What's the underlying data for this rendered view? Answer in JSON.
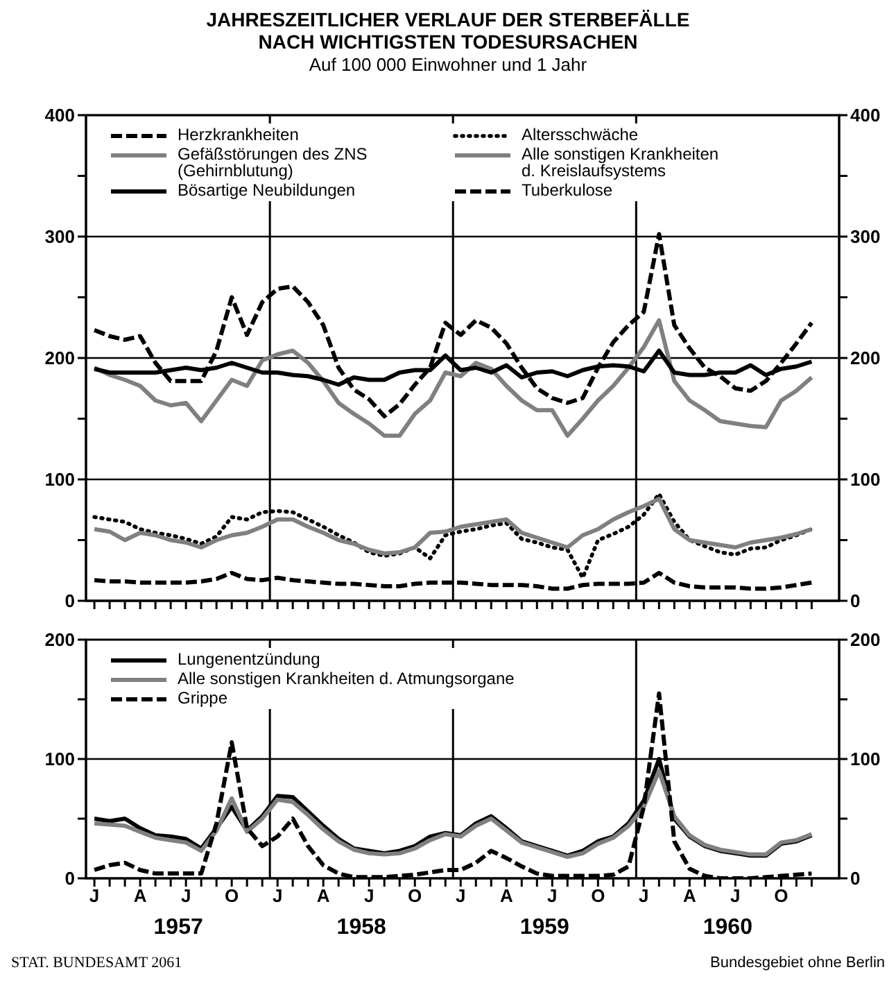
{
  "chart_data": [
    {
      "type": "line",
      "title": "JAHRESZEITLICHER VERLAUF DER STERBEFÄLLE NACH WICHTIGSTEN TODESURSACHEN",
      "subtitle": "Auf 100 000 Einwohner und 1 Jahr",
      "categories": [
        null,
        null,
        null,
        null,
        null,
        null,
        null,
        null,
        null,
        null,
        null,
        null,
        null,
        null,
        null,
        null,
        null,
        null,
        null,
        null,
        null,
        null,
        null,
        null,
        null,
        null,
        null,
        null,
        null,
        null,
        null,
        null,
        null,
        null,
        null,
        null,
        null,
        null,
        null,
        null,
        null,
        null,
        null,
        null,
        null,
        null,
        null,
        null
      ],
      "ylim": [
        0,
        400
      ],
      "yticks": [
        0,
        {
          "value": 50,
          "label": null
        },
        100,
        {
          "value": 150,
          "label": null
        },
        200,
        {
          "value": 250,
          "label": null
        },
        300,
        {
          "value": 350,
          "label": null
        },
        400
      ],
      "y2lim": [
        0,
        400
      ],
      "y2ticks": [
        0,
        {
          "value": 50,
          "label": null
        },
        100,
        {
          "value": 150,
          "label": null
        },
        200,
        {
          "value": 250,
          "label": null
        },
        300,
        {
          "value": 350,
          "label": null
        },
        400
      ],
      "grid": "y",
      "legend": "top",
      "series": [
        {
          "name": "Herzkrankheiten",
          "color": "#000000",
          "line_style": "dashed",
          "values": [
            223,
            218,
            215,
            218,
            196,
            181,
            181,
            181,
            206,
            250,
            219,
            246,
            257,
            259,
            246,
            227,
            192,
            174,
            166,
            152,
            162,
            178,
            192,
            229,
            219,
            231,
            225,
            212,
            192,
            175,
            167,
            163,
            167,
            192,
            213,
            227,
            238,
            302,
            227,
            208,
            192,
            185,
            175,
            173,
            181,
            196,
            212,
            229
          ]
        },
        {
          "name": "Altersschwäche",
          "color": "#000000",
          "line_style": "dotted",
          "values": [
            69,
            67,
            65,
            59,
            56,
            54,
            51,
            47,
            53,
            69,
            67,
            73,
            74,
            73,
            67,
            61,
            54,
            48,
            40,
            37,
            39,
            44,
            35,
            54,
            57,
            59,
            62,
            64,
            51,
            48,
            44,
            42,
            19,
            50,
            55,
            61,
            71,
            88,
            65,
            50,
            45,
            40,
            38,
            43,
            44,
            50,
            54,
            59
          ]
        },
        {
          "name": "Gefäßstörungen des ZNS (Gehirnblutung)",
          "color": "#808080",
          "line_style": "solid",
          "values": [
            192,
            186,
            182,
            177,
            165,
            161,
            163,
            148,
            165,
            182,
            177,
            198,
            203,
            206,
            196,
            181,
            163,
            154,
            146,
            136,
            136,
            154,
            165,
            188,
            185,
            196,
            191,
            177,
            165,
            157,
            157,
            136,
            150,
            165,
            177,
            192,
            209,
            231,
            181,
            165,
            157,
            148,
            146,
            144,
            143,
            165,
            173,
            184
          ]
        },
        {
          "name": "Alle sonstigen Krankheiten d. Kreislaufsystems",
          "color": "#808080",
          "line_style": "solid",
          "values": [
            59,
            57,
            50,
            56,
            54,
            50,
            48,
            44,
            50,
            54,
            56,
            61,
            67,
            67,
            61,
            56,
            50,
            47,
            42,
            39,
            40,
            44,
            56,
            57,
            61,
            63,
            65,
            67,
            56,
            52,
            48,
            44,
            54,
            59,
            67,
            73,
            78,
            84,
            59,
            50,
            48,
            46,
            44,
            48,
            50,
            52,
            55,
            59
          ]
        },
        {
          "name": "Bösartige Neubildungen",
          "color": "#000000",
          "line_style": "solid",
          "values": [
            191,
            188,
            188,
            188,
            188,
            190,
            192,
            190,
            192,
            196,
            192,
            188,
            188,
            186,
            185,
            182,
            178,
            184,
            182,
            182,
            188,
            190,
            190,
            202,
            190,
            192,
            188,
            194,
            184,
            188,
            189,
            185,
            190,
            193,
            194,
            193,
            189,
            206,
            188,
            186,
            186,
            188,
            188,
            194,
            186,
            191,
            193,
            197
          ]
        },
        {
          "name": "Tuberkulose",
          "color": "#000000",
          "line_style": "dashed",
          "values": [
            17,
            16,
            16,
            15,
            15,
            15,
            15,
            16,
            18,
            23,
            18,
            17,
            19,
            17,
            16,
            15,
            14,
            14,
            13,
            12,
            12,
            14,
            15,
            15,
            15,
            14,
            13,
            13,
            13,
            12,
            10,
            10,
            13,
            14,
            14,
            14,
            15,
            23,
            15,
            12,
            11,
            11,
            11,
            10,
            10,
            11,
            13,
            15
          ]
        }
      ]
    },
    {
      "type": "line",
      "categories": [
        "J",
        null,
        null,
        "A",
        null,
        null,
        "J",
        null,
        null,
        "O",
        null,
        null,
        "J",
        null,
        null,
        "A",
        null,
        null,
        "J",
        null,
        null,
        "O",
        null,
        null,
        "J",
        null,
        null,
        "A",
        null,
        null,
        "J",
        null,
        null,
        "O",
        null,
        null,
        "J",
        null,
        null,
        "A",
        null,
        null,
        "J",
        null,
        null,
        "O",
        null,
        null
      ],
      "ylim": [
        0,
        200
      ],
      "yticks": [
        0,
        {
          "value": 50,
          "label": null
        },
        100,
        {
          "value": 150,
          "label": null
        },
        200
      ],
      "y2lim": [
        0,
        200
      ],
      "y2ticks": [
        0,
        {
          "value": 50,
          "label": null
        },
        100,
        {
          "value": 150,
          "label": null
        },
        200
      ],
      "ref_lines": [
        {
          "axis": "y",
          "value": 100
        }
      ],
      "legend": "top left",
      "annotations": [
        "1957",
        "1958",
        "1959",
        "1960",
        "STAT. BUNDESAMT 2061",
        "Bundesgebiet ohne Berlin"
      ],
      "series": [
        {
          "name": "Lungenentzündung",
          "color": "#000000",
          "line_style": "solid",
          "values": [
            50,
            48,
            50,
            42,
            36,
            35,
            33,
            25,
            42,
            60,
            40,
            52,
            69,
            68,
            56,
            44,
            33,
            25,
            23,
            21,
            23,
            27,
            35,
            38,
            36,
            46,
            52,
            42,
            31,
            27,
            23,
            19,
            23,
            31,
            35,
            46,
            65,
            100,
            50,
            35,
            27,
            23,
            21,
            19,
            19,
            29,
            31,
            36
          ]
        },
        {
          "name": "Alle sonstigen Krankheiten d. Atmungsorgane",
          "color": "#808080",
          "line_style": "solid",
          "values": [
            46,
            45,
            44,
            39,
            34,
            32,
            30,
            23,
            40,
            67,
            39,
            50,
            66,
            64,
            53,
            41,
            31,
            24,
            21,
            20,
            21,
            25,
            32,
            37,
            35,
            44,
            50,
            40,
            30,
            26,
            22,
            18,
            21,
            29,
            34,
            44,
            60,
            90,
            52,
            36,
            28,
            24,
            22,
            20,
            20,
            30,
            32,
            37
          ]
        },
        {
          "name": "Grippe",
          "color": "#000000",
          "line_style": "dashed",
          "values": [
            7,
            11,
            13,
            7,
            4,
            4,
            4,
            4,
            46,
            114,
            42,
            27,
            35,
            50,
            27,
            11,
            4,
            1,
            1,
            1,
            2,
            3,
            5,
            7,
            7,
            13,
            23,
            17,
            10,
            4,
            2,
            2,
            2,
            2,
            3,
            10,
            60,
            155,
            31,
            8,
            2,
            0,
            0,
            0,
            1,
            2,
            3,
            4
          ]
        }
      ]
    }
  ]
}
